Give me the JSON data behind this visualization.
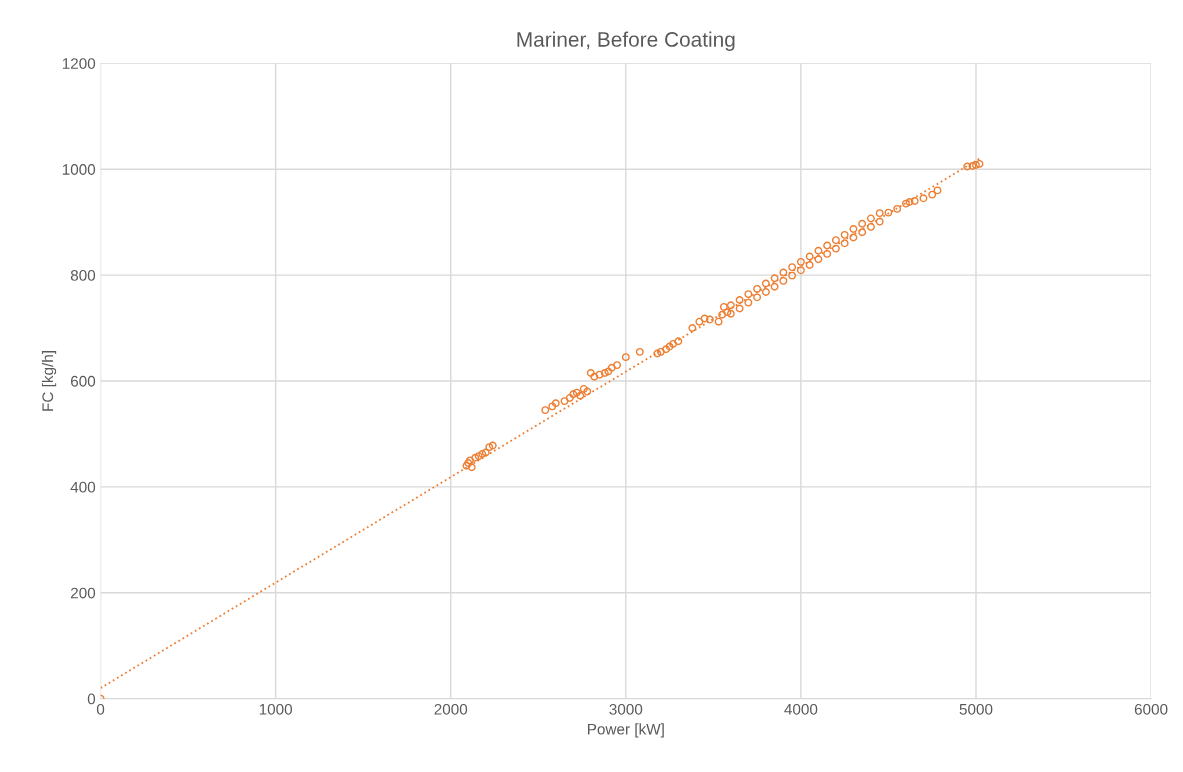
{
  "chart_data": {
    "type": "scatter",
    "title": "Mariner, Before Coating",
    "xlabel": "Power [kW]",
    "ylabel": "FC [kg/h]",
    "xlim": [
      0,
      6000
    ],
    "xticks": [
      0,
      1000,
      2000,
      3000,
      4000,
      5000,
      6000
    ],
    "ylim": [
      0,
      1200
    ],
    "yticks": [
      0,
      200,
      400,
      600,
      800,
      1000,
      1200
    ],
    "grid": true,
    "marker": "circle",
    "series": [
      {
        "color": "#ed7d31",
        "x": [
          0,
          2090,
          2100,
          2110,
          2120,
          2140,
          2160,
          2180,
          2200,
          2220,
          2240,
          2540,
          2580,
          2600,
          2650,
          2680,
          2700,
          2720,
          2740,
          2760,
          2780,
          2800,
          2820,
          2850,
          2880,
          2900,
          2920,
          2950,
          3000,
          3080,
          3180,
          3200,
          3230,
          3250,
          3270,
          3300,
          3380,
          3420,
          3450,
          3480,
          3530,
          3550,
          3560,
          3580,
          3600,
          3600,
          3650,
          3650,
          3700,
          3700,
          3750,
          3750,
          3800,
          3800,
          3850,
          3850,
          3900,
          3900,
          3950,
          3950,
          4000,
          4000,
          4050,
          4050,
          4100,
          4100,
          4150,
          4150,
          4200,
          4200,
          4250,
          4250,
          4300,
          4300,
          4350,
          4350,
          4400,
          4400,
          4450,
          4450,
          4500,
          4550,
          4600,
          4620,
          4650,
          4700,
          4750,
          4780,
          4950,
          4980,
          5000,
          5020
        ],
        "values": [
          0,
          440,
          445,
          450,
          437,
          455,
          458,
          462,
          465,
          475,
          478,
          545,
          552,
          558,
          562,
          568,
          575,
          578,
          572,
          585,
          580,
          615,
          608,
          612,
          615,
          618,
          625,
          630,
          645,
          655,
          652,
          655,
          660,
          665,
          670,
          675,
          700,
          712,
          718,
          716,
          712,
          725,
          740,
          730,
          743,
          727,
          753,
          737,
          764,
          748,
          774,
          758,
          784,
          768,
          794,
          778,
          805,
          789,
          815,
          799,
          825,
          809,
          835,
          819,
          846,
          830,
          856,
          840,
          866,
          850,
          876,
          860,
          887,
          871,
          897,
          881,
          907,
          891,
          917,
          901,
          918,
          925,
          935,
          938,
          940,
          945,
          952,
          960,
          1005,
          1006,
          1008,
          1010
        ]
      },
      {
        "type": "line",
        "color": "#ed7d31",
        "line_style": "dotted",
        "marker": "none",
        "x": [
          0,
          5020
        ],
        "values": [
          20,
          1020
        ]
      }
    ]
  }
}
